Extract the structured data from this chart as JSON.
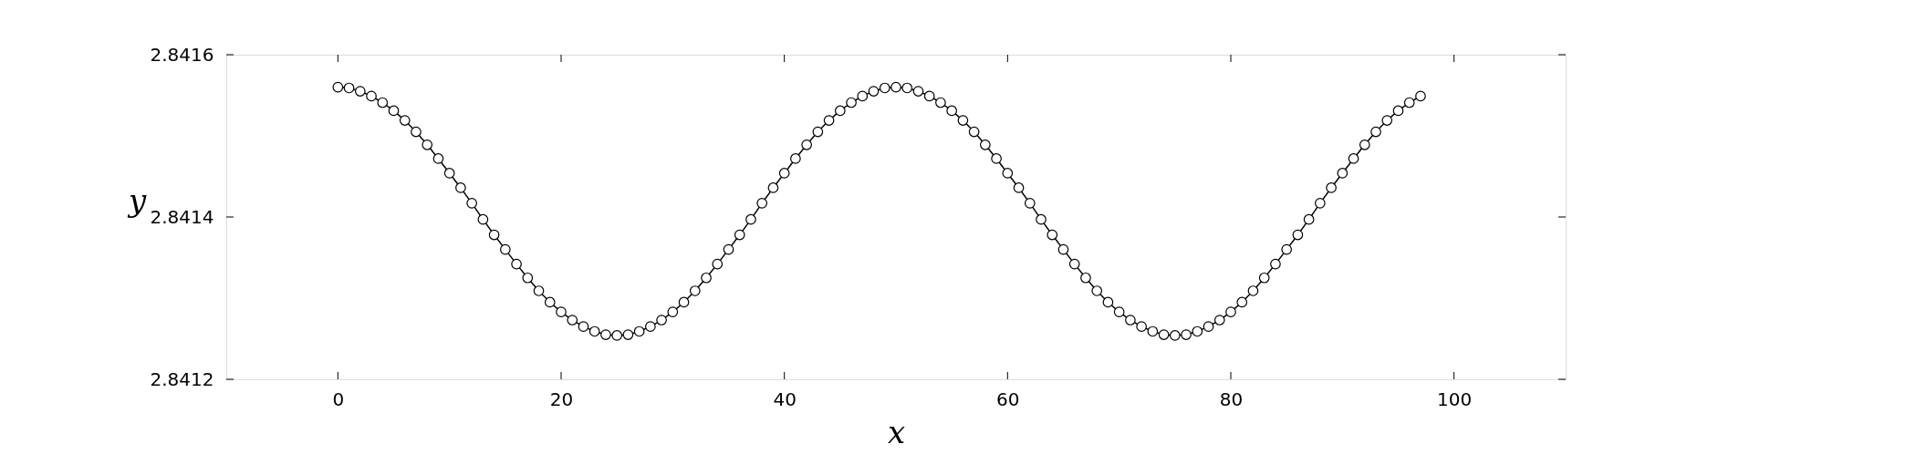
{
  "chart_data": {
    "type": "line",
    "xlabel": "x",
    "ylabel": "y",
    "xlim": [
      -10,
      110
    ],
    "xticks": [
      0,
      20,
      40,
      60,
      80,
      100
    ],
    "ylim": [
      2.8412,
      2.8416
    ],
    "yticks": [
      2.8412,
      2.8414,
      2.8416
    ],
    "grid": false,
    "marker": "circle",
    "line_style": "solid",
    "x": [
      0,
      1,
      2,
      3,
      4,
      5,
      6,
      7,
      8,
      9,
      10,
      11,
      12,
      13,
      14,
      15,
      16,
      17,
      18,
      19,
      20,
      21,
      22,
      23,
      24,
      25,
      26,
      27,
      28,
      29,
      30,
      31,
      32,
      33,
      34,
      35,
      36,
      37,
      38,
      39,
      40,
      41,
      42,
      43,
      44,
      45,
      46,
      47,
      48,
      49,
      50,
      51,
      52,
      53,
      54,
      55,
      56,
      57,
      58,
      59,
      60,
      61,
      62,
      63,
      64,
      65,
      66,
      67,
      68,
      69,
      70,
      71,
      72,
      73,
      74,
      75,
      76,
      77,
      78,
      79,
      80,
      81,
      82,
      83,
      84,
      85,
      86,
      87,
      88,
      89,
      90,
      91,
      92,
      93,
      94,
      95,
      96,
      97
    ],
    "series": [
      {
        "color": "#000000",
        "values": [
          2.84156,
          2.841559,
          2.841555,
          2.841549,
          2.841541,
          2.841531,
          2.841519,
          2.841505,
          2.841489,
          2.841472,
          2.841454,
          2.841436,
          2.841417,
          2.841397,
          2.841378,
          2.84136,
          2.841342,
          2.841325,
          2.841309,
          2.841295,
          2.841283,
          2.841273,
          2.841265,
          2.841259,
          2.841255,
          2.841254,
          2.841255,
          2.841259,
          2.841265,
          2.841273,
          2.841283,
          2.841295,
          2.841309,
          2.841325,
          2.841342,
          2.84136,
          2.841378,
          2.841397,
          2.841417,
          2.841436,
          2.841454,
          2.841472,
          2.841489,
          2.841505,
          2.841519,
          2.841531,
          2.841541,
          2.841549,
          2.841555,
          2.841559,
          2.84156,
          2.841559,
          2.841555,
          2.841549,
          2.841541,
          2.841531,
          2.841519,
          2.841505,
          2.841489,
          2.841472,
          2.841454,
          2.841436,
          2.841417,
          2.841397,
          2.841378,
          2.84136,
          2.841342,
          2.841325,
          2.841309,
          2.841295,
          2.841283,
          2.841273,
          2.841265,
          2.841259,
          2.841255,
          2.841254,
          2.841255,
          2.841259,
          2.841265,
          2.841273,
          2.841283,
          2.841295,
          2.841309,
          2.841325,
          2.841342,
          2.84136,
          2.841378,
          2.841397,
          2.841417,
          2.841436,
          2.841454,
          2.841472,
          2.841489,
          2.841505,
          2.841519,
          2.841531,
          2.841541,
          2.841549
        ]
      }
    ]
  }
}
